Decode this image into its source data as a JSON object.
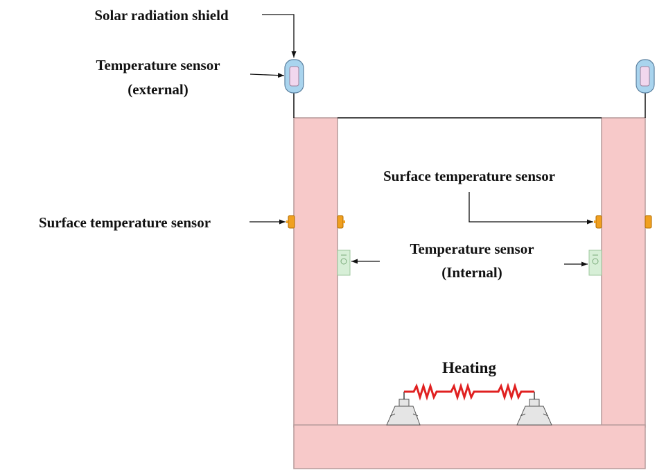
{
  "labels": {
    "shield": "Solar radiation shield",
    "temp_external_line1": "Temperature sensor",
    "temp_external_line2": "(external)",
    "surface_left": "Surface temperature sensor",
    "surface_right": "Surface temperature sensor",
    "temp_internal_line1": "Temperature sensor",
    "temp_internal_line2": "(Internal)",
    "heating": "Heating"
  },
  "colors": {
    "wall_fill": "#f7c9c9",
    "wall_stroke": "#b59a9a",
    "surface_sensor": "#f0a020",
    "internal_sensor": "#d7efd7",
    "shield_fill": "#a9d4ee",
    "heater": "#e02020",
    "support_fill": "#e5e5e5"
  }
}
